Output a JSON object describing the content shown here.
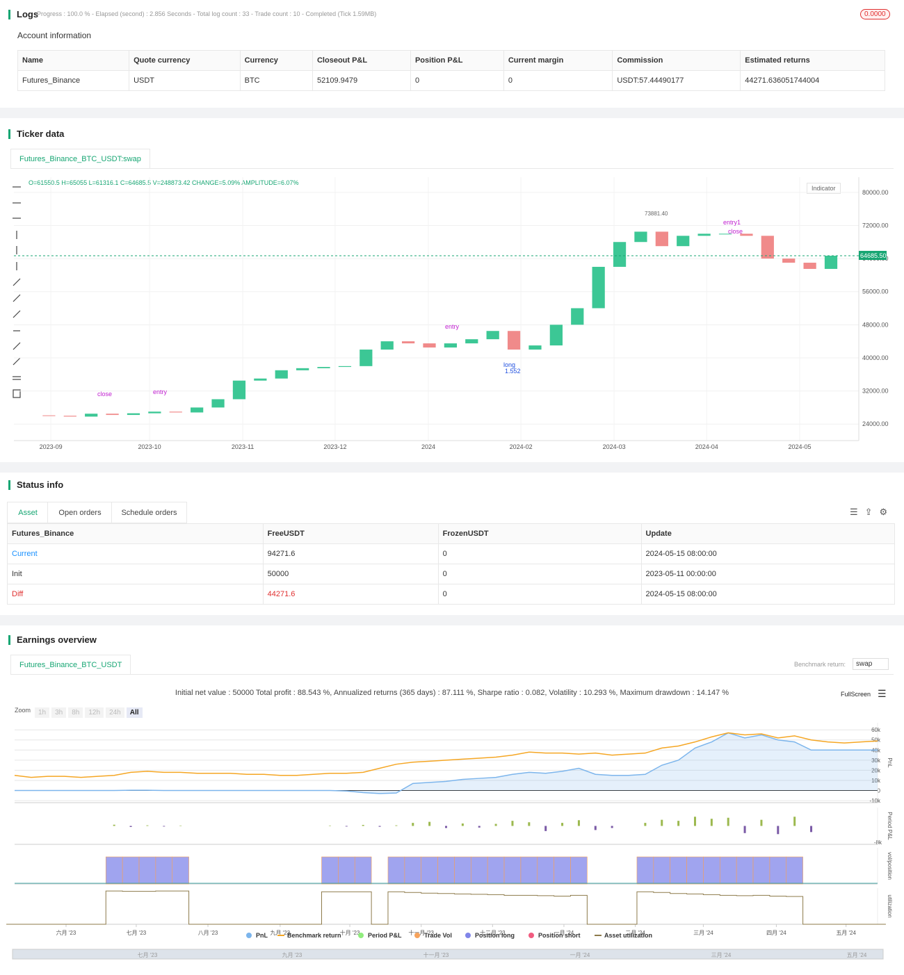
{
  "logs": {
    "title": "Logs",
    "status": "Progress : 100.0 % - Elapsed (second) : 2.856  Seconds - Total log count : 33 - Trade count : 10 - Completed (Tick 1.59MB)",
    "badge": "0.0000"
  },
  "account": {
    "title": "Account information",
    "headers": [
      "Name",
      "Quote currency",
      "Currency",
      "Closeout P&L",
      "Position P&L",
      "Current margin",
      "Commission",
      "Estimated returns"
    ],
    "rows": [
      [
        "Futures_Binance",
        "USDT",
        "BTC",
        "52109.9479",
        "0",
        "0",
        "USDT:57.44490177",
        "44271.636051744004"
      ]
    ]
  },
  "ticker": {
    "title": "Ticker data",
    "tab": "Futures_Binance_BTC_USDT:swap",
    "ohlc": "O=61550.5 H=65055 L=61316.1 C=64685.5 V=248873.42 CHANGE=5.09% AMPLITUDE=6.07%",
    "indicator": "Indicator",
    "annotations": [
      "73881.40",
      "entry1",
      "close",
      "entry",
      "close",
      "entry",
      "long",
      "1.552"
    ]
  },
  "status": {
    "title": "Status info",
    "tabs": [
      "Asset",
      "Open orders",
      "Schedule orders"
    ],
    "headers": [
      "Futures_Binance",
      "FreeUSDT",
      "FrozenUSDT",
      "Update"
    ],
    "rows": [
      [
        "Current",
        "94271.6",
        "0",
        "2024-05-15 08:00:00"
      ],
      [
        "Init",
        "50000",
        "0",
        "2023-05-11 00:00:00"
      ],
      [
        "Diff",
        "44271.6",
        "0",
        "2024-05-15 08:00:00"
      ]
    ]
  },
  "earnings": {
    "title": "Earnings overview",
    "tab": "Futures_Binance_BTC_USDT",
    "benchmark_label": "Benchmark return:",
    "benchmark_value": "swap",
    "summary": "Initial net value : 50000 Total profit : 88.543 %, Annualized returns (365 days) : 87.111 %, Sharpe ratio : 0.082, Volatility : 10.293 %, Maximum drawdown : 14.147 %",
    "fullscreen": "FullScreen",
    "zoom_label": "Zoom",
    "zoom_buttons": [
      "1h",
      "3h",
      "8h",
      "12h",
      "24h",
      "All"
    ],
    "navigator_labels": [
      "七月 '23",
      "九月 '23",
      "十一月 '23",
      "一月 '24",
      "三月 '24",
      "五月 '24"
    ]
  },
  "chart_data": [
    {
      "type": "candlestick",
      "closes": [
        26100,
        26000,
        25800,
        26500,
        26200,
        26600,
        27000,
        26800,
        28000,
        30000,
        34500,
        35000,
        37000,
        37500,
        37800,
        38000,
        42000,
        44000,
        43500,
        42500,
        43500,
        44500,
        46500,
        42000,
        43000,
        48000,
        52000,
        62000,
        68000,
        70500,
        67000,
        69500,
        70000,
        70000,
        69500,
        64000,
        63000,
        61500,
        64685.5
      ],
      "up_color": "#3cc795",
      "down_color": "#f08a8a",
      "ylim": [
        20000,
        84000
      ],
      "yticks": [
        {
          "value": 80000,
          "label": "80000.00"
        },
        {
          "value": 72000,
          "label": "72000.00"
        },
        {
          "value": 64000,
          "label": "64000.00"
        },
        {
          "value": 56000,
          "label": "56000.00"
        },
        {
          "value": 48000,
          "label": "48000.00"
        },
        {
          "value": 40000,
          "label": "40000.00"
        },
        {
          "value": 32000,
          "label": "32000.00"
        },
        {
          "value": 24000,
          "label": "24000.00"
        }
      ],
      "xlim": [
        0,
        38
      ],
      "xticks": [
        {
          "value": 1.09,
          "label": "2023-09"
        },
        {
          "value": 5.76,
          "label": "2023-10"
        },
        {
          "value": 10.17,
          "label": "2023-11"
        },
        {
          "value": 14.54,
          "label": "2023-12"
        },
        {
          "value": 18.95,
          "label": "2024"
        },
        {
          "value": 23.33,
          "label": "2024-02"
        },
        {
          "value": 27.74,
          "label": "2024-03"
        },
        {
          "value": 32.12,
          "label": "2024-04"
        },
        {
          "value": 36.52,
          "label": "2024-05"
        }
      ],
      "last_price": {
        "value": 64685.5,
        "label": "64685.50"
      },
      "grid": true
    },
    {
      "type": "line",
      "series": [
        {
          "name": "PnL",
          "color": "#7cb5ec",
          "panel": "pnl",
          "values": [
            0,
            0,
            0,
            0,
            0,
            0,
            0,
            300,
            300,
            0,
            0,
            0,
            0,
            0,
            0,
            0,
            0,
            0,
            0,
            0,
            -500,
            -2000,
            -3000,
            -2500,
            7000,
            8000,
            9000,
            11000,
            12000,
            13000,
            16000,
            18000,
            17000,
            19000,
            22000,
            16000,
            15000,
            15000,
            16000,
            25000,
            30000,
            42000,
            48000,
            57000,
            52000,
            55000,
            50000,
            48000,
            40000,
            40000,
            40000,
            40000,
            40000
          ]
        },
        {
          "name": "Benchmark return",
          "color": "#f5a623",
          "panel": "pnl",
          "values": [
            15000,
            13000,
            14000,
            14000,
            13000,
            14000,
            15000,
            18000,
            19000,
            18000,
            18000,
            17000,
            17000,
            17000,
            16000,
            16000,
            15000,
            15000,
            16000,
            17000,
            17000,
            18000,
            22000,
            26000,
            28000,
            29000,
            30000,
            31000,
            32000,
            33000,
            35000,
            38000,
            37000,
            37000,
            36000,
            37000,
            35000,
            36000,
            37000,
            42000,
            44000,
            48000,
            53000,
            57000,
            55000,
            56000,
            52000,
            54000,
            50000,
            48000,
            47000,
            48000,
            49000
          ]
        },
        {
          "name": "Period P&L",
          "color": "#90ed7d",
          "panel": "period",
          "values": [
            0,
            0,
            0,
            0,
            0,
            0,
            600,
            -500,
            300,
            -300,
            200,
            0,
            0,
            0,
            0,
            0,
            0,
            0,
            0,
            200,
            -300,
            500,
            -400,
            300,
            1500,
            2000,
            -1000,
            1200,
            -800,
            1000,
            2500,
            1800,
            -2500,
            1500,
            2800,
            -2000,
            -1000,
            0,
            1500,
            3000,
            2500,
            4500,
            3500,
            4000,
            -3500,
            3000,
            -4000,
            4500,
            -3000,
            0,
            0,
            0,
            0
          ]
        },
        {
          "name": "Trade Vol",
          "color": "#f7a35c",
          "panel": "vol"
        },
        {
          "name": "Position long",
          "color": "#8085e9",
          "panel": "vol",
          "values": [
            0,
            0,
            0,
            0,
            0,
            0,
            1.5,
            1.5,
            1.5,
            1.5,
            1.5,
            0,
            0,
            0,
            0,
            0,
            0,
            0,
            0,
            1.5,
            1.5,
            1.5,
            0,
            1.5,
            1.5,
            1.5,
            1.5,
            1.5,
            1.5,
            1.5,
            1.5,
            1.5,
            1.5,
            1.5,
            1.5,
            0,
            0,
            0,
            1.5,
            1.5,
            1.5,
            1.5,
            1.5,
            1.5,
            1.5,
            1.5,
            1.5,
            1.5,
            0,
            0,
            0,
            0,
            0
          ]
        },
        {
          "name": "Position short",
          "color": "#f15c80",
          "panel": "vol"
        },
        {
          "name": "Asset utilization",
          "color": "#8d7a4a",
          "panel": "util",
          "values": [
            0,
            0,
            0,
            0,
            0,
            0,
            0.92,
            0.91,
            0.91,
            0.92,
            0.92,
            0,
            0,
            0,
            0,
            0,
            0,
            0,
            0,
            0.9,
            0.9,
            0.9,
            0,
            0.9,
            0.88,
            0.86,
            0.85,
            0.84,
            0.83,
            0.82,
            0.8,
            0.8,
            0.79,
            0.78,
            0.8,
            0,
            0,
            0,
            0.9,
            0.88,
            0.85,
            0.84,
            0.82,
            0.8,
            0.79,
            0.8,
            0.78,
            0.77,
            0,
            0,
            0,
            0,
            0
          ]
        }
      ],
      "negative_color": "#7a5aa6",
      "positive_color": "#9cb94f",
      "xlim": [
        0,
        52
      ],
      "xticks": [
        {
          "value": 3.1,
          "label": "六月 '23"
        },
        {
          "value": 7.33,
          "label": "七月 '23"
        },
        {
          "value": 11.65,
          "label": "八月 '23"
        },
        {
          "value": 16.0,
          "label": "九月 '23"
        },
        {
          "value": 20.2,
          "label": "十月 '23"
        },
        {
          "value": 24.5,
          "label": "十一月 '23"
        },
        {
          "value": 28.8,
          "label": "十二月 '23"
        },
        {
          "value": 33.1,
          "label": "一月 '24"
        },
        {
          "value": 37.4,
          "label": "二月 '24"
        },
        {
          "value": 41.5,
          "label": "三月 '24"
        },
        {
          "value": 45.9,
          "label": "四月 '24"
        },
        {
          "value": 50.1,
          "label": "五月 '24"
        }
      ],
      "ylim": [
        -12000,
        67000
      ],
      "yticks": [
        {
          "value": 60000,
          "label": "60k"
        },
        {
          "value": 50000,
          "label": "50k"
        },
        {
          "value": 40000,
          "label": "40k"
        },
        {
          "value": 30000,
          "label": "30k"
        },
        {
          "value": 20000,
          "label": "20k"
        },
        {
          "value": 10000,
          "label": "10k"
        },
        0,
        {
          "value": -10000,
          "label": "-10k"
        }
      ],
      "y2lim": [
        -9000,
        9000
      ],
      "y2ticks": [
        {
          "value": -8000,
          "label": "-8k"
        }
      ],
      "y3lim": [
        0,
        2
      ],
      "y4lim": [
        0,
        1
      ],
      "axis_labels": [
        "PnL",
        "Period P&L",
        "vol/position",
        "utilization"
      ],
      "grid": true
    }
  ]
}
